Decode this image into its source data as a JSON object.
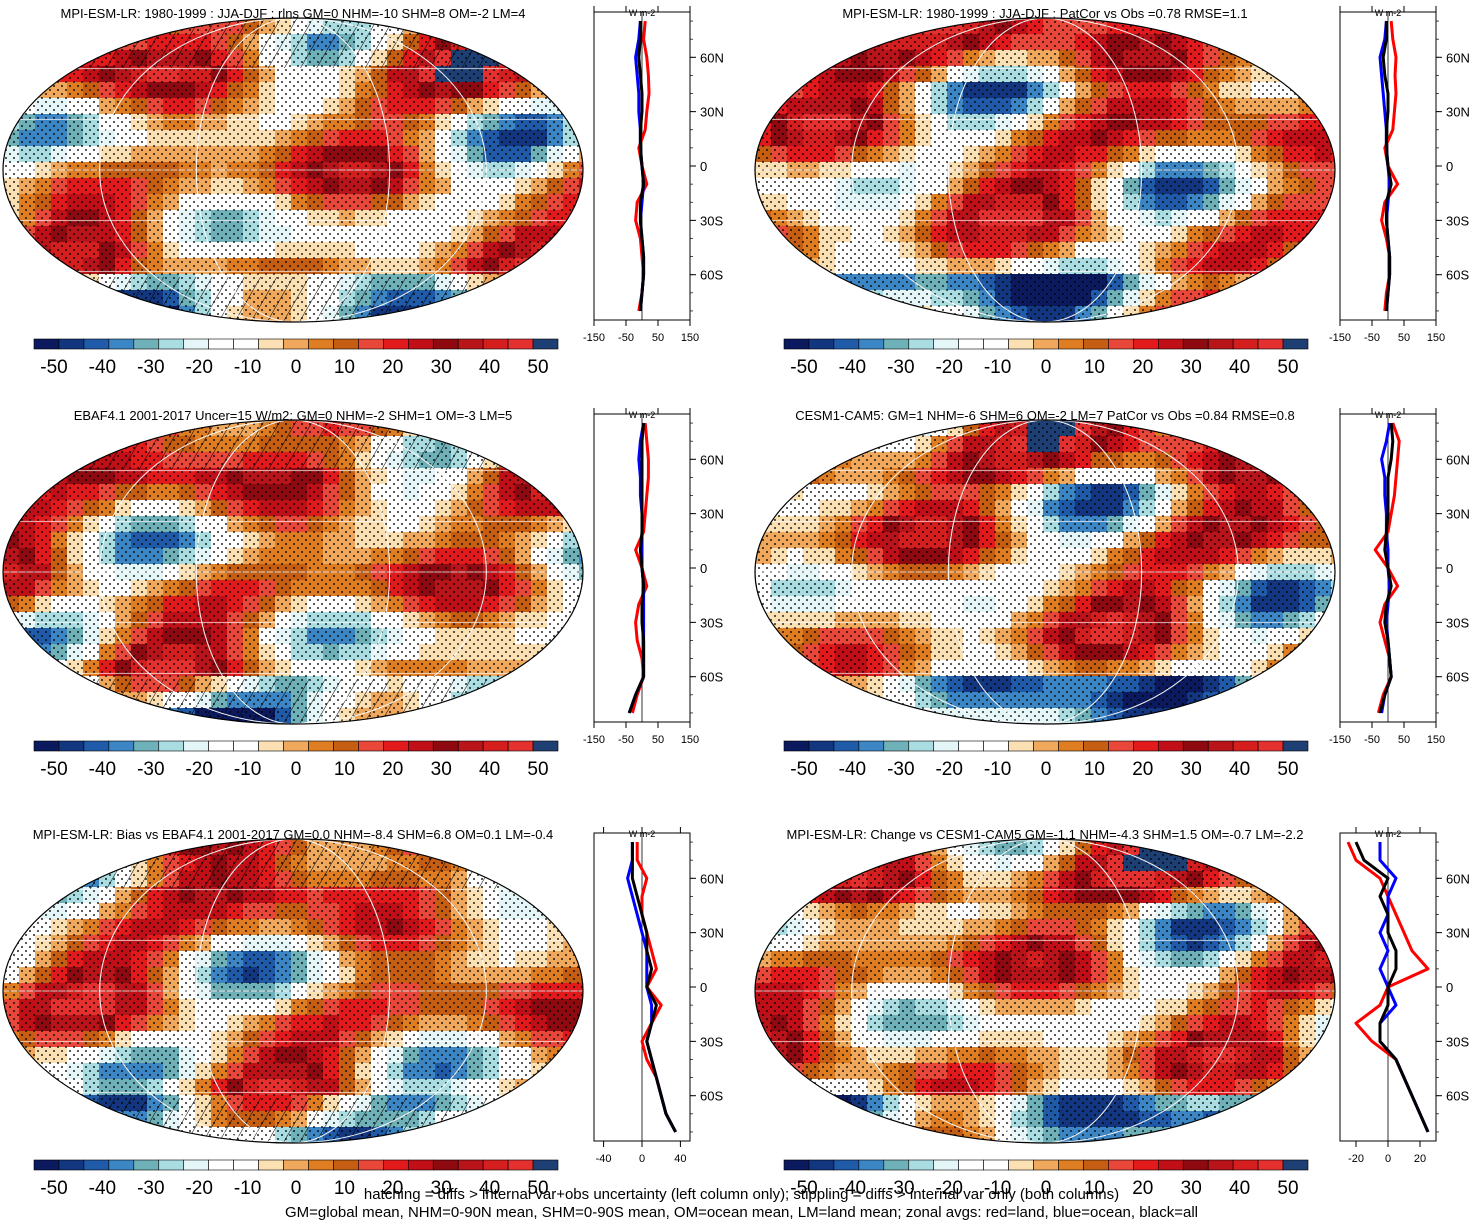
{
  "footnote": {
    "line1": "hatching = diffs > internal var+obs uncertainty (left column only); stippling = diffs > internal var only (both columns)",
    "line2": "GM=global mean, NHM=0-90N mean, SHM=0-90S mean, OM=ocean mean, LM=land mean; zonal avgs: red=land, blue=ocean, black=all"
  },
  "colorbar": {
    "labels": [
      "-50",
      "-40",
      "-30",
      "-20",
      "-10",
      "0",
      "10",
      "20",
      "30",
      "40",
      "50"
    ],
    "colors": [
      "#0b1a5e",
      "#12367f",
      "#1f5ba8",
      "#3d86c6",
      "#6fb1b9",
      "#a9dde2",
      "#e4f6f8",
      "#ffffff",
      "#ffffff",
      "#fbe0b4",
      "#f0a85c",
      "#de7d21",
      "#c55e12",
      "#e8473a",
      "#e31a1c",
      "#c00f17",
      "#8e0a10",
      "#b81419",
      "#d51f1f",
      "#e53030",
      "#1d3f73"
    ]
  },
  "colors": {
    "land": "#ff0000",
    "ocean": "#0000ff",
    "all": "#000000"
  },
  "panels": [
    {
      "title": "MPI-ESM-LR: 1980-1999 : JJA-DJF : rlns GM=0 NHM=-10 SHM=8 OM=-2 LM=4",
      "hatched": true,
      "chart_data": {
        "type": "line",
        "units": "W m-2",
        "lat_labels": [
          "60N",
          "30N",
          "0",
          "30S",
          "60S"
        ],
        "x_ticks": [
          "-150",
          "-50",
          "50",
          "150"
        ],
        "xlim": [
          -150,
          150
        ],
        "ylim": [
          -85,
          85
        ],
        "lat": [
          80,
          70,
          60,
          50,
          40,
          30,
          20,
          10,
          0,
          -10,
          -20,
          -30,
          -40,
          -50,
          -60,
          -70,
          -80
        ],
        "series": [
          {
            "values": [
              10,
              5,
              15,
              20,
              22,
              15,
              10,
              -10,
              0,
              15,
              -15,
              -20,
              -5,
              0,
              5,
              0,
              -10
            ]
          },
          {
            "values": [
              -5,
              -10,
              -20,
              -15,
              -10,
              -10,
              -5,
              -5,
              0,
              5,
              0,
              -5,
              0,
              5,
              5,
              0,
              -5
            ]
          },
          {
            "values": [
              -5,
              -5,
              -10,
              -5,
              0,
              0,
              -5,
              -5,
              0,
              5,
              -5,
              -5,
              0,
              5,
              5,
              0,
              -5
            ]
          }
        ]
      }
    },
    {
      "title": "MPI-ESM-LR: 1980-1999 : JJA-DJF : PatCor vs Obs =0.78 RMSE=1.1",
      "hatched": false,
      "chart_data": {
        "type": "line",
        "units": "W m-2",
        "lat_labels": [
          "60N",
          "30N",
          "0",
          "30S",
          "60S"
        ],
        "x_ticks": [
          "-150",
          "-50",
          "50",
          "150"
        ],
        "xlim": [
          -150,
          150
        ],
        "ylim": [
          -85,
          85
        ],
        "lat": [
          80,
          70,
          60,
          50,
          40,
          30,
          20,
          10,
          0,
          -10,
          -20,
          -30,
          -40,
          -50,
          -60,
          -70,
          -80
        ],
        "series": [
          {
            "values": [
              10,
              15,
              25,
              22,
              25,
              20,
              15,
              -10,
              0,
              30,
              -10,
              -20,
              -5,
              5,
              5,
              -5,
              -10
            ]
          },
          {
            "values": [
              -5,
              -10,
              -25,
              -20,
              -15,
              -10,
              -5,
              -5,
              0,
              5,
              0,
              -5,
              0,
              5,
              5,
              0,
              -5
            ]
          },
          {
            "values": [
              -5,
              -5,
              -15,
              -10,
              0,
              0,
              -5,
              -5,
              0,
              10,
              -5,
              -5,
              0,
              5,
              5,
              0,
              -5
            ]
          }
        ]
      }
    },
    {
      "title": "EBAF4.1 2001-2017 Uncer=15 W/m2: GM=0 NHM=-2 SHM=1 OM=-3 LM=5",
      "hatched": true,
      "chart_data": {
        "type": "line",
        "units": "W m-2",
        "lat_labels": [
          "60N",
          "30N",
          "0",
          "30S",
          "60S"
        ],
        "x_ticks": [
          "-150",
          "-50",
          "50",
          "150"
        ],
        "xlim": [
          -150,
          150
        ],
        "ylim": [
          -85,
          85
        ],
        "lat": [
          80,
          70,
          60,
          50,
          40,
          30,
          20,
          10,
          0,
          -10,
          -20,
          -30,
          -40,
          -50,
          -60,
          -70,
          -80
        ],
        "series": [
          {
            "values": [
              10,
              15,
              20,
              20,
              15,
              10,
              5,
              -20,
              0,
              15,
              -10,
              -20,
              -15,
              0,
              5,
              -15,
              -30
            ]
          },
          {
            "values": [
              5,
              -5,
              -10,
              -5,
              -5,
              0,
              0,
              0,
              0,
              5,
              5,
              5,
              5,
              5,
              5,
              -20,
              -40
            ]
          },
          {
            "values": [
              5,
              0,
              0,
              0,
              0,
              0,
              0,
              -5,
              0,
              5,
              0,
              0,
              5,
              5,
              5,
              -20,
              -40
            ]
          }
        ]
      }
    },
    {
      "title": "CESM1-CAM5: GM=1 NHM=-6 SHM=6 OM=-2 LM=7 PatCor vs Obs =0.84 RMSE=0.8",
      "hatched": false,
      "chart_data": {
        "type": "line",
        "units": "W m-2",
        "lat_labels": [
          "60N",
          "30N",
          "0",
          "30S",
          "60S"
        ],
        "x_ticks": [
          "-150",
          "-50",
          "50",
          "150"
        ],
        "xlim": [
          -150,
          150
        ],
        "ylim": [
          -85,
          85
        ],
        "lat": [
          80,
          70,
          60,
          50,
          40,
          30,
          20,
          10,
          0,
          -10,
          -20,
          -30,
          -40,
          -50,
          -60,
          -70,
          -80
        ],
        "series": [
          {
            "values": [
              15,
              35,
              30,
              25,
              20,
              10,
              0,
              -40,
              0,
              30,
              -10,
              -25,
              -10,
              5,
              10,
              -15,
              -30
            ]
          },
          {
            "values": [
              5,
              -5,
              -20,
              -10,
              -10,
              -5,
              -5,
              0,
              0,
              5,
              0,
              -5,
              0,
              5,
              10,
              -10,
              -20
            ]
          },
          {
            "values": [
              10,
              15,
              10,
              0,
              0,
              0,
              -5,
              -10,
              0,
              10,
              -5,
              -10,
              0,
              5,
              10,
              -10,
              -25
            ]
          }
        ]
      }
    },
    {
      "title": "MPI-ESM-LR: Bias vs EBAF4.1 2001-2017 GM=0.0 NHM=-8.4 SHM=6.8 OM=0.1 LM=-0.4",
      "hatched": true,
      "chart_data": {
        "type": "line",
        "units": "W m-2",
        "lat_labels": [
          "60N",
          "30N",
          "0",
          "30S",
          "60S"
        ],
        "x_ticks": [
          "-40",
          "0",
          "40"
        ],
        "xlim": [
          -50,
          50
        ],
        "ylim": [
          -85,
          85
        ],
        "lat": [
          80,
          70,
          60,
          50,
          40,
          30,
          20,
          10,
          0,
          -10,
          -20,
          -30,
          -40,
          -50,
          -60,
          -70,
          -80
        ],
        "series": [
          {
            "values": [
              -5,
              -5,
              5,
              0,
              0,
              5,
              10,
              15,
              5,
              20,
              10,
              0,
              5,
              15,
              20,
              25,
              35
            ]
          },
          {
            "values": [
              -10,
              -10,
              -15,
              -10,
              -5,
              0,
              5,
              5,
              5,
              10,
              10,
              5,
              10,
              15,
              20,
              25,
              35
            ]
          },
          {
            "values": [
              -10,
              -10,
              -10,
              -5,
              0,
              5,
              5,
              10,
              5,
              15,
              10,
              5,
              10,
              15,
              20,
              25,
              35
            ]
          }
        ]
      }
    },
    {
      "title": "MPI-ESM-LR: Change vs CESM1-CAM5 GM=-1.1 NHM=-4.3 SHM=1.5 OM=-0.7 LM=-2.2",
      "hatched": false,
      "chart_data": {
        "type": "line",
        "units": "W m-2",
        "lat_labels": [
          "60N",
          "30N",
          "0",
          "30S",
          "60S"
        ],
        "x_ticks": [
          "-20",
          "0",
          "20"
        ],
        "xlim": [
          -30,
          30
        ],
        "ylim": [
          -85,
          85
        ],
        "lat": [
          80,
          70,
          60,
          50,
          40,
          30,
          20,
          10,
          0,
          -10,
          -20,
          -30,
          -40,
          -50,
          -60,
          -70,
          -80
        ],
        "series": [
          {
            "values": [
              -25,
              -20,
              -5,
              0,
              5,
              10,
              15,
              25,
              0,
              -5,
              -20,
              -10,
              5,
              10,
              15,
              20,
              25
            ]
          },
          {
            "values": [
              -5,
              -5,
              5,
              0,
              0,
              -5,
              0,
              -5,
              0,
              5,
              -5,
              -5,
              5,
              10,
              15,
              20,
              25
            ]
          },
          {
            "values": [
              -20,
              -15,
              0,
              -5,
              0,
              0,
              5,
              5,
              0,
              0,
              -5,
              -5,
              5,
              10,
              15,
              20,
              25
            ]
          }
        ]
      }
    }
  ]
}
